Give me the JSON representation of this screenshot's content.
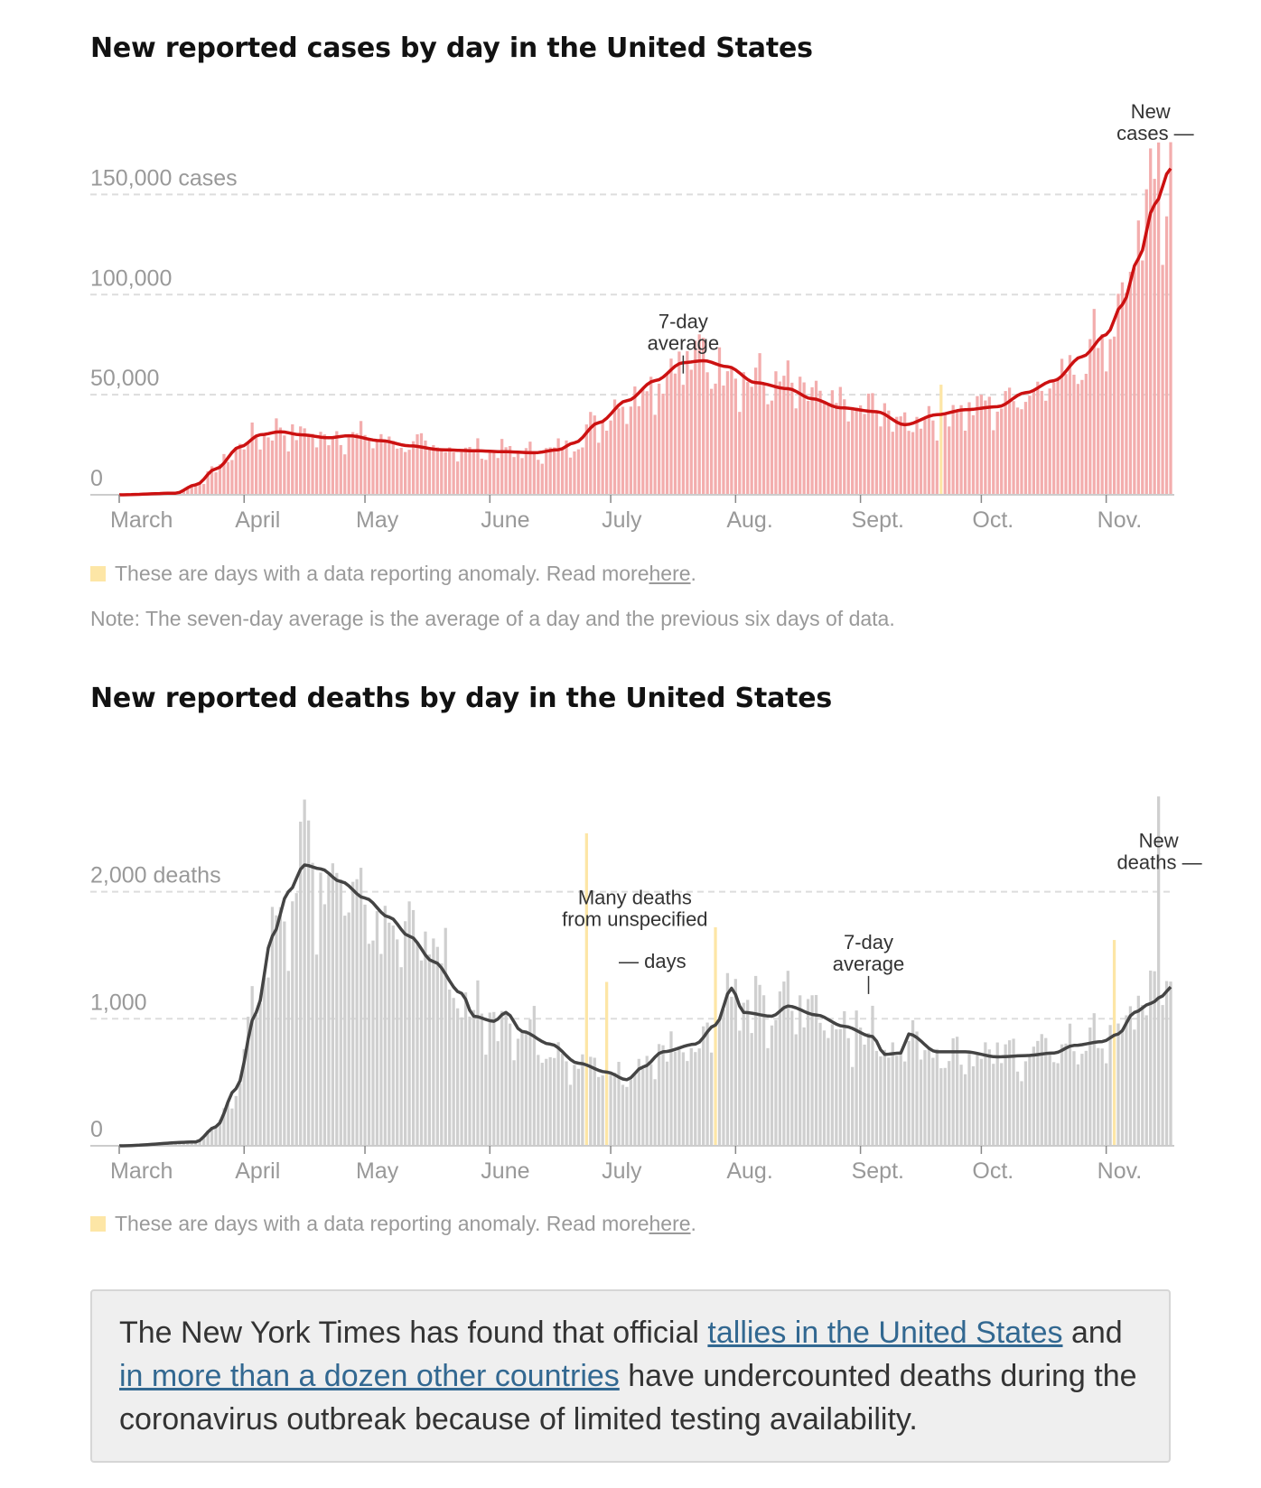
{
  "colors": {
    "case_bar": "#f3adad",
    "case_line": "#cc1111",
    "death_bar": "#cfcfcf",
    "death_line": "#444444",
    "anomaly": "#fde6a6",
    "grid": "#dddddd",
    "axis_text": "#999999",
    "link": "#326891",
    "callout_bg": "#efefef"
  },
  "cases_section": {
    "title": "New reported cases by day in the United States",
    "legend_text": "These are days with a data reporting anomaly. Read more ",
    "legend_link": "here",
    "legend_period": ".",
    "note": "Note: The seven-day average is the average of a day and the previous six days of data."
  },
  "deaths_section": {
    "title": "New reported deaths by day in the United States",
    "legend_text": "These are days with a data reporting anomaly. Read more ",
    "legend_link": "here",
    "legend_period": "."
  },
  "callout": {
    "text_1": "The New York Times has found that official ",
    "link_1": "tallies in the United States",
    "text_2": " and ",
    "link_2": "in more than a dozen other countries",
    "text_3": " have undercounted deaths during the coronavirus outbreak because of limited testing availability."
  },
  "chart_data": [
    {
      "type": "bar",
      "title": "New reported cases by day in the United States",
      "x_start": "2020-03-01",
      "x_end": "2020-11-17",
      "ylim": [
        0,
        175000
      ],
      "y_ticks": [
        {
          "value": 0,
          "label": "0"
        },
        {
          "value": 50000,
          "label": "50,000"
        },
        {
          "value": 100000,
          "label": "100,000"
        },
        {
          "value": 150000,
          "label": "150,000 cases"
        }
      ],
      "x_ticks": [
        {
          "date": "2020-03-01",
          "label": "March"
        },
        {
          "date": "2020-04-01",
          "label": "April"
        },
        {
          "date": "2020-05-01",
          "label": "May"
        },
        {
          "date": "2020-06-01",
          "label": "June"
        },
        {
          "date": "2020-07-01",
          "label": "July"
        },
        {
          "date": "2020-08-01",
          "label": "Aug."
        },
        {
          "date": "2020-09-01",
          "label": "Sept."
        },
        {
          "date": "2020-10-01",
          "label": "Oct."
        },
        {
          "date": "2020-11-01",
          "label": "Nov."
        }
      ],
      "series": [
        {
          "name": "New cases",
          "kind": "bar"
        },
        {
          "name": "7-day average",
          "kind": "line"
        }
      ],
      "avg_keypoints": [
        [
          "2020-03-01",
          0
        ],
        [
          "2020-03-15",
          800
        ],
        [
          "2020-03-20",
          5000
        ],
        [
          "2020-03-25",
          13000
        ],
        [
          "2020-03-31",
          24000
        ],
        [
          "2020-04-05",
          30000
        ],
        [
          "2020-04-10",
          31500
        ],
        [
          "2020-04-15",
          30000
        ],
        [
          "2020-04-22",
          28500
        ],
        [
          "2020-04-27",
          29500
        ],
        [
          "2020-05-05",
          27000
        ],
        [
          "2020-05-12",
          24500
        ],
        [
          "2020-05-20",
          22500
        ],
        [
          "2020-05-28",
          22000
        ],
        [
          "2020-06-05",
          21500
        ],
        [
          "2020-06-12",
          21000
        ],
        [
          "2020-06-18",
          22500
        ],
        [
          "2020-06-22",
          26000
        ],
        [
          "2020-06-28",
          36000
        ],
        [
          "2020-07-05",
          47000
        ],
        [
          "2020-07-12",
          57000
        ],
        [
          "2020-07-19",
          66000
        ],
        [
          "2020-07-24",
          67000
        ],
        [
          "2020-07-30",
          64000
        ],
        [
          "2020-08-06",
          56000
        ],
        [
          "2020-08-14",
          53000
        ],
        [
          "2020-08-20",
          48000
        ],
        [
          "2020-08-27",
          43500
        ],
        [
          "2020-09-05",
          41500
        ],
        [
          "2020-09-12",
          35000
        ],
        [
          "2020-09-20",
          40000
        ],
        [
          "2020-09-27",
          42500
        ],
        [
          "2020-10-05",
          44000
        ],
        [
          "2020-10-12",
          51000
        ],
        [
          "2020-10-19",
          57000
        ],
        [
          "2020-10-26",
          69000
        ],
        [
          "2020-11-01",
          80000
        ],
        [
          "2020-11-05",
          95000
        ],
        [
          "2020-11-09",
          118000
        ],
        [
          "2020-11-13",
          145000
        ],
        [
          "2020-11-17",
          163000
        ]
      ],
      "daily_peak": 176000,
      "anomaly_dates": [
        {
          "date": "2020-09-21",
          "value": 55000
        }
      ],
      "annotations": [
        {
          "lines": [
            "7-day",
            "average"
          ],
          "date": "2020-07-19",
          "y": 66000
        },
        {
          "lines": [
            "New",
            "cases —"
          ],
          "date": "2020-11-12",
          "y": 171000
        }
      ]
    },
    {
      "type": "bar",
      "title": "New reported deaths by day in the United States",
      "x_start": "2020-03-01",
      "x_end": "2020-11-17",
      "ylim": [
        0,
        2850
      ],
      "y_ticks": [
        {
          "value": 0,
          "label": "0"
        },
        {
          "value": 1000,
          "label": "1,000"
        },
        {
          "value": 2000,
          "label": "2,000 deaths"
        }
      ],
      "x_ticks": [
        {
          "date": "2020-03-01",
          "label": "March"
        },
        {
          "date": "2020-04-01",
          "label": "April"
        },
        {
          "date": "2020-05-01",
          "label": "May"
        },
        {
          "date": "2020-06-01",
          "label": "June"
        },
        {
          "date": "2020-07-01",
          "label": "July"
        },
        {
          "date": "2020-08-01",
          "label": "Aug."
        },
        {
          "date": "2020-09-01",
          "label": "Sept."
        },
        {
          "date": "2020-10-01",
          "label": "Oct."
        },
        {
          "date": "2020-11-01",
          "label": "Nov."
        }
      ],
      "series": [
        {
          "name": "New deaths",
          "kind": "bar"
        },
        {
          "name": "7-day average",
          "kind": "line"
        }
      ],
      "avg_keypoints": [
        [
          "2020-03-01",
          0
        ],
        [
          "2020-03-20",
          30
        ],
        [
          "2020-03-25",
          150
        ],
        [
          "2020-03-30",
          450
        ],
        [
          "2020-04-04",
          1050
        ],
        [
          "2020-04-08",
          1650
        ],
        [
          "2020-04-12",
          2000
        ],
        [
          "2020-04-16",
          2210
        ],
        [
          "2020-04-20",
          2180
        ],
        [
          "2020-04-25",
          2080
        ],
        [
          "2020-05-01",
          1950
        ],
        [
          "2020-05-07",
          1800
        ],
        [
          "2020-05-12",
          1650
        ],
        [
          "2020-05-18",
          1450
        ],
        [
          "2020-05-25",
          1200
        ],
        [
          "2020-05-28",
          1020
        ],
        [
          "2020-06-02",
          980
        ],
        [
          "2020-06-05",
          1050
        ],
        [
          "2020-06-09",
          900
        ],
        [
          "2020-06-16",
          800
        ],
        [
          "2020-06-23",
          650
        ],
        [
          "2020-06-30",
          580
        ],
        [
          "2020-07-05",
          520
        ],
        [
          "2020-07-09",
          620
        ],
        [
          "2020-07-14",
          740
        ],
        [
          "2020-07-22",
          800
        ],
        [
          "2020-07-27",
          950
        ],
        [
          "2020-07-31",
          1240
        ],
        [
          "2020-08-03",
          1050
        ],
        [
          "2020-08-10",
          1020
        ],
        [
          "2020-08-14",
          1100
        ],
        [
          "2020-08-21",
          1030
        ],
        [
          "2020-08-28",
          940
        ],
        [
          "2020-09-04",
          860
        ],
        [
          "2020-09-07",
          720
        ],
        [
          "2020-09-11",
          730
        ],
        [
          "2020-09-13",
          880
        ],
        [
          "2020-09-20",
          740
        ],
        [
          "2020-09-27",
          740
        ],
        [
          "2020-10-05",
          700
        ],
        [
          "2020-10-12",
          710
        ],
        [
          "2020-10-19",
          730
        ],
        [
          "2020-10-24",
          790
        ],
        [
          "2020-10-31",
          820
        ],
        [
          "2020-11-04",
          880
        ],
        [
          "2020-11-08",
          1050
        ],
        [
          "2020-11-12",
          1120
        ],
        [
          "2020-11-15",
          1180
        ],
        [
          "2020-11-17",
          1250
        ]
      ],
      "daily_peak": 2750,
      "anomaly_dates": [
        {
          "date": "2020-06-25",
          "value": 2460
        },
        {
          "date": "2020-06-30",
          "value": 1290
        },
        {
          "date": "2020-07-27",
          "value": 1720
        },
        {
          "date": "2020-11-03",
          "value": 1620
        }
      ],
      "annotations": [
        {
          "lines": [
            "Many deaths",
            "from unspecified"
          ],
          "date": "2020-07-07",
          "y": 1630
        },
        {
          "lines": [
            "— days"
          ],
          "date": "2020-07-03",
          "y": 1300
        },
        {
          "lines": [
            "7-day",
            "average"
          ],
          "date": "2020-09-03",
          "y": 1280
        },
        {
          "lines": [
            "New",
            "deaths —"
          ],
          "date": "2020-11-14",
          "y": 2080
        }
      ]
    }
  ]
}
